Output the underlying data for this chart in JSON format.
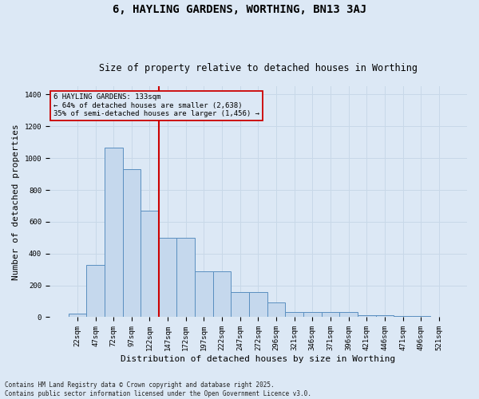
{
  "title1": "6, HAYLING GARDENS, WORTHING, BN13 3AJ",
  "title2": "Size of property relative to detached houses in Worthing",
  "xlabel": "Distribution of detached houses by size in Worthing",
  "ylabel": "Number of detached properties",
  "categories": [
    "22sqm",
    "47sqm",
    "72sqm",
    "97sqm",
    "122sqm",
    "147sqm",
    "172sqm",
    "197sqm",
    "222sqm",
    "247sqm",
    "272sqm",
    "296sqm",
    "321sqm",
    "346sqm",
    "371sqm",
    "396sqm",
    "421sqm",
    "446sqm",
    "471sqm",
    "496sqm",
    "521sqm"
  ],
  "values": [
    20,
    330,
    1065,
    930,
    670,
    500,
    500,
    290,
    290,
    160,
    160,
    95,
    30,
    30,
    30,
    30,
    10,
    10,
    5,
    5,
    2
  ],
  "bar_color": "#c5d8ed",
  "bar_edge_color": "#5a8fc0",
  "vline_color": "#cc0000",
  "vline_x_index": 4,
  "annotation_text": "6 HAYLING GARDENS: 133sqm\n← 64% of detached houses are smaller (2,638)\n35% of semi-detached houses are larger (1,456) →",
  "annotation_box_edgecolor": "#cc0000",
  "ylim": [
    0,
    1450
  ],
  "yticks": [
    0,
    200,
    400,
    600,
    800,
    1000,
    1200,
    1400
  ],
  "grid_color": "#c8d8e8",
  "bg_color": "#dce8f5",
  "footnote": "Contains HM Land Registry data © Crown copyright and database right 2025.\nContains public sector information licensed under the Open Government Licence v3.0.",
  "title_fontsize": 10,
  "subtitle_fontsize": 8.5,
  "tick_fontsize": 6.5,
  "label_fontsize": 8,
  "footnote_fontsize": 5.5
}
